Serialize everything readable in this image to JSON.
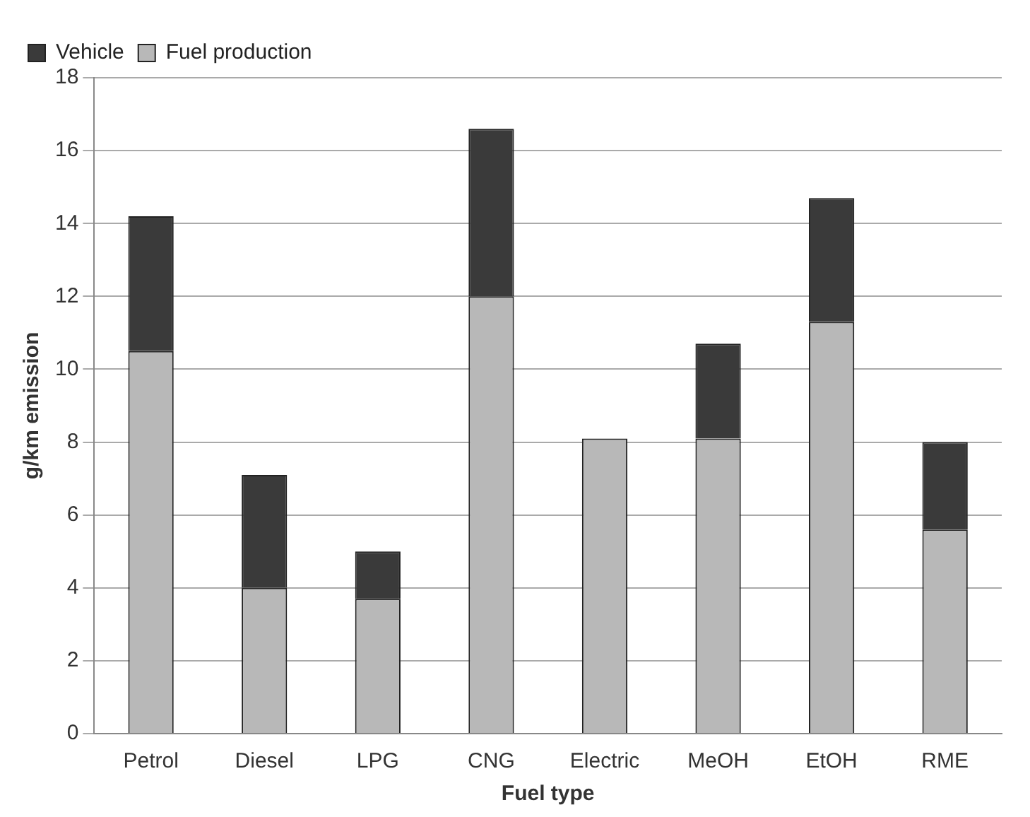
{
  "chart_data": {
    "type": "bar",
    "stacked": true,
    "xlabel": "Fuel type",
    "ylabel": "g/km emission",
    "categories": [
      "Petrol",
      "Diesel",
      "LPG",
      "CNG",
      "Electric",
      "MeOH",
      "EtOH",
      "RME"
    ],
    "series": [
      {
        "name": "Fuel production",
        "color": "#b8b8b8",
        "values": [
          10.5,
          4.0,
          3.7,
          12.0,
          8.1,
          8.1,
          11.3,
          5.6
        ]
      },
      {
        "name": "Vehicle",
        "color": "#3a3a3a",
        "values": [
          3.7,
          3.1,
          1.3,
          4.6,
          0,
          2.6,
          3.4,
          2.4
        ]
      }
    ],
    "ylim": [
      0,
      18
    ],
    "yticks": [
      0,
      2,
      4,
      6,
      8,
      10,
      12,
      14,
      16,
      18
    ],
    "grid": "y",
    "legend": "top left"
  }
}
